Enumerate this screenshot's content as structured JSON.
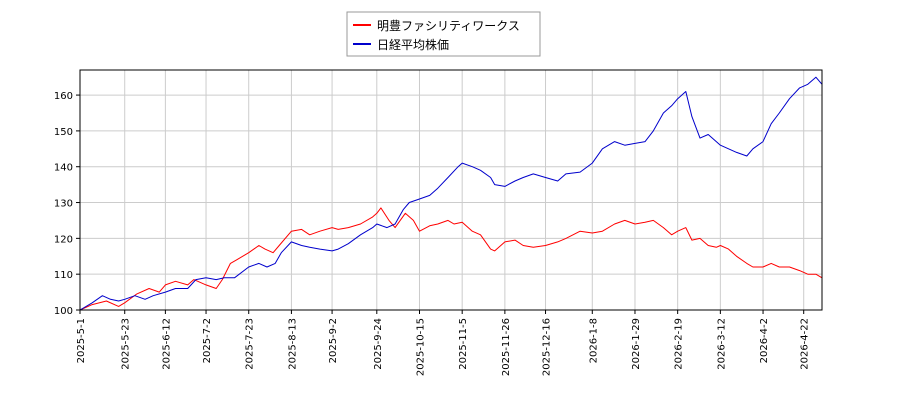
{
  "chart_data": {
    "type": "line",
    "grid": true,
    "legend_position": "top-center",
    "ylim": [
      100,
      167
    ],
    "y_ticks": [
      100,
      110,
      120,
      130,
      140,
      150,
      160
    ],
    "x_range": [
      "2025-05-01",
      "2026-05-01"
    ],
    "x_ticks": [
      "2025-5-1",
      "2025-5-23",
      "2025-6-12",
      "2025-7-2",
      "2025-7-23",
      "2025-8-13",
      "2025-9-2",
      "2025-9-24",
      "2025-10-15",
      "2025-11-5",
      "2025-11-26",
      "2025-12-16",
      "2026-1-8",
      "2026-1-29",
      "2026-2-19",
      "2026-3-12",
      "2026-4-2",
      "2026-4-22"
    ],
    "series": [
      {
        "name": "明豊ファシリティワークス",
        "color": "#ff0000",
        "points": [
          [
            "2025-05-01",
            100
          ],
          [
            "2025-05-07",
            101.5
          ],
          [
            "2025-05-14",
            102.5
          ],
          [
            "2025-05-20",
            101
          ],
          [
            "2025-05-23",
            102
          ],
          [
            "2025-05-29",
            104.5
          ],
          [
            "2025-06-04",
            106
          ],
          [
            "2025-06-09",
            105
          ],
          [
            "2025-06-12",
            107
          ],
          [
            "2025-06-17",
            108
          ],
          [
            "2025-06-23",
            107
          ],
          [
            "2025-06-26",
            108.5
          ],
          [
            "2025-07-02",
            107
          ],
          [
            "2025-07-07",
            106
          ],
          [
            "2025-07-10",
            108.5
          ],
          [
            "2025-07-14",
            113
          ],
          [
            "2025-07-17",
            114
          ],
          [
            "2025-07-23",
            116
          ],
          [
            "2025-07-28",
            118
          ],
          [
            "2025-07-31",
            117
          ],
          [
            "2025-08-04",
            116
          ],
          [
            "2025-08-07",
            118
          ],
          [
            "2025-08-13",
            122
          ],
          [
            "2025-08-18",
            122.5
          ],
          [
            "2025-08-22",
            121
          ],
          [
            "2025-08-27",
            122
          ],
          [
            "2025-09-02",
            123
          ],
          [
            "2025-09-05",
            122.5
          ],
          [
            "2025-09-10",
            123
          ],
          [
            "2025-09-16",
            124
          ],
          [
            "2025-09-22",
            126
          ],
          [
            "2025-09-24",
            127
          ],
          [
            "2025-09-26",
            128.5
          ],
          [
            "2025-09-30",
            125
          ],
          [
            "2025-10-03",
            123
          ],
          [
            "2025-10-08",
            127
          ],
          [
            "2025-10-12",
            125
          ],
          [
            "2025-10-15",
            122
          ],
          [
            "2025-10-20",
            123.5
          ],
          [
            "2025-10-24",
            124
          ],
          [
            "2025-10-29",
            125
          ],
          [
            "2025-11-01",
            124
          ],
          [
            "2025-11-05",
            124.5
          ],
          [
            "2025-11-10",
            122
          ],
          [
            "2025-11-14",
            121
          ],
          [
            "2025-11-19",
            117
          ],
          [
            "2025-11-21",
            116.5
          ],
          [
            "2025-11-26",
            119
          ],
          [
            "2025-12-01",
            119.5
          ],
          [
            "2025-12-05",
            118
          ],
          [
            "2025-12-10",
            117.5
          ],
          [
            "2025-12-16",
            118
          ],
          [
            "2025-12-22",
            119
          ],
          [
            "2025-12-26",
            120
          ],
          [
            "2026-01-02",
            122
          ],
          [
            "2026-01-08",
            121.5
          ],
          [
            "2026-01-13",
            122
          ],
          [
            "2026-01-19",
            124
          ],
          [
            "2026-01-24",
            125
          ],
          [
            "2026-01-29",
            124
          ],
          [
            "2026-02-03",
            124.5
          ],
          [
            "2026-02-07",
            125
          ],
          [
            "2026-02-12",
            123
          ],
          [
            "2026-02-16",
            121
          ],
          [
            "2026-02-19",
            122
          ],
          [
            "2026-02-23",
            123
          ],
          [
            "2026-02-26",
            119.5
          ],
          [
            "2026-03-02",
            120
          ],
          [
            "2026-03-06",
            118
          ],
          [
            "2026-03-10",
            117.5
          ],
          [
            "2026-03-12",
            118
          ],
          [
            "2026-03-16",
            117
          ],
          [
            "2026-03-20",
            115
          ],
          [
            "2026-03-25",
            113
          ],
          [
            "2026-03-28",
            112
          ],
          [
            "2026-04-02",
            112
          ],
          [
            "2026-04-06",
            113
          ],
          [
            "2026-04-10",
            112
          ],
          [
            "2026-04-15",
            112
          ],
          [
            "2026-04-20",
            111
          ],
          [
            "2026-04-24",
            110
          ],
          [
            "2026-04-28",
            110
          ],
          [
            "2026-05-01",
            109
          ]
        ]
      },
      {
        "name": "日経平均株価",
        "color": "#0000cc",
        "points": [
          [
            "2025-05-01",
            100
          ],
          [
            "2025-05-07",
            102
          ],
          [
            "2025-05-12",
            104
          ],
          [
            "2025-05-16",
            103
          ],
          [
            "2025-05-20",
            102.5
          ],
          [
            "2025-05-23",
            103
          ],
          [
            "2025-05-28",
            104
          ],
          [
            "2025-06-02",
            103
          ],
          [
            "2025-06-06",
            104
          ],
          [
            "2025-06-12",
            105
          ],
          [
            "2025-06-17",
            106
          ],
          [
            "2025-06-23",
            106
          ],
          [
            "2025-06-27",
            108.5
          ],
          [
            "2025-07-02",
            109
          ],
          [
            "2025-07-07",
            108.5
          ],
          [
            "2025-07-11",
            109
          ],
          [
            "2025-07-16",
            109
          ],
          [
            "2025-07-23",
            112
          ],
          [
            "2025-07-28",
            113
          ],
          [
            "2025-08-01",
            112
          ],
          [
            "2025-08-05",
            113
          ],
          [
            "2025-08-08",
            116
          ],
          [
            "2025-08-13",
            119
          ],
          [
            "2025-08-18",
            118
          ],
          [
            "2025-08-22",
            117.5
          ],
          [
            "2025-08-27",
            117
          ],
          [
            "2025-09-02",
            116.5
          ],
          [
            "2025-09-05",
            117
          ],
          [
            "2025-09-10",
            118.5
          ],
          [
            "2025-09-16",
            121
          ],
          [
            "2025-09-22",
            123
          ],
          [
            "2025-09-24",
            124
          ],
          [
            "2025-09-29",
            123
          ],
          [
            "2025-10-03",
            124
          ],
          [
            "2025-10-07",
            128
          ],
          [
            "2025-10-10",
            130
          ],
          [
            "2025-10-15",
            131
          ],
          [
            "2025-10-20",
            132
          ],
          [
            "2025-10-24",
            134
          ],
          [
            "2025-10-29",
            137
          ],
          [
            "2025-11-03",
            140
          ],
          [
            "2025-11-05",
            141
          ],
          [
            "2025-11-10",
            140
          ],
          [
            "2025-11-14",
            139
          ],
          [
            "2025-11-19",
            137
          ],
          [
            "2025-11-21",
            135
          ],
          [
            "2025-11-26",
            134.5
          ],
          [
            "2025-12-01",
            136
          ],
          [
            "2025-12-05",
            137
          ],
          [
            "2025-12-10",
            138
          ],
          [
            "2025-12-16",
            137
          ],
          [
            "2025-12-22",
            136
          ],
          [
            "2025-12-26",
            138
          ],
          [
            "2026-01-02",
            138.5
          ],
          [
            "2026-01-08",
            141
          ],
          [
            "2026-01-13",
            145
          ],
          [
            "2026-01-19",
            147
          ],
          [
            "2026-01-24",
            146
          ],
          [
            "2026-01-29",
            146.5
          ],
          [
            "2026-02-03",
            147
          ],
          [
            "2026-02-07",
            150
          ],
          [
            "2026-02-12",
            155
          ],
          [
            "2026-02-16",
            157
          ],
          [
            "2026-02-19",
            159
          ],
          [
            "2026-02-23",
            161
          ],
          [
            "2026-02-26",
            154
          ],
          [
            "2026-03-02",
            148
          ],
          [
            "2026-03-06",
            149
          ],
          [
            "2026-03-10",
            147
          ],
          [
            "2026-03-12",
            146
          ],
          [
            "2026-03-16",
            145
          ],
          [
            "2026-03-20",
            144
          ],
          [
            "2026-03-25",
            143
          ],
          [
            "2026-03-28",
            145
          ],
          [
            "2026-04-02",
            147
          ],
          [
            "2026-04-06",
            152
          ],
          [
            "2026-04-10",
            155
          ],
          [
            "2026-04-15",
            159
          ],
          [
            "2026-04-20",
            162
          ],
          [
            "2026-04-24",
            163
          ],
          [
            "2026-04-28",
            165
          ],
          [
            "2026-05-01",
            163
          ]
        ]
      }
    ]
  }
}
